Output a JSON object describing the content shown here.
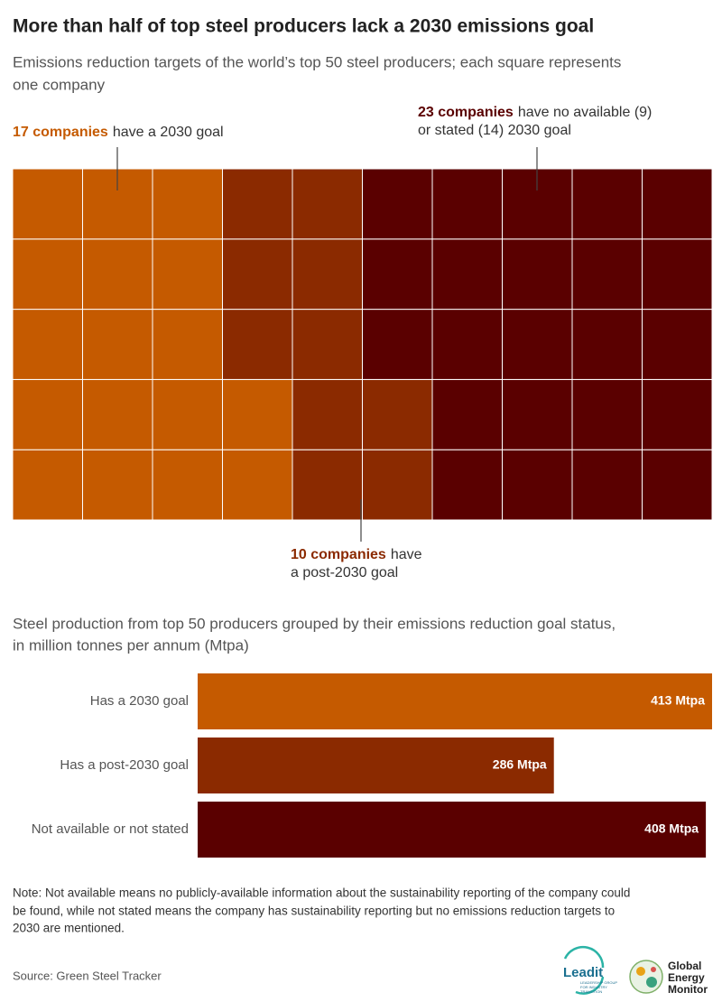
{
  "title": "More than half of top steel producers lack a 2030 emissions goal",
  "subtitle": [
    "Emissions reduction targets of the world’s top 50 steel producers; each square represents",
    "one company"
  ],
  "chart_data": [
    {
      "type": "waffle",
      "values": [
        17,
        10,
        23
      ],
      "colors": [
        "#c55a00",
        "#8b2a00",
        "#5a0000"
      ],
      "annotations": [
        {
          "highlight": "17 companies",
          "text": [
            "have a 2030 goal"
          ]
        },
        {
          "highlight": "10 companies",
          "text": [
            "have",
            "a post-2030 goal"
          ]
        },
        {
          "highlight": "23 companies",
          "text": [
            "have no available (9)",
            "or stated (14) 2030 goal"
          ]
        }
      ]
    },
    {
      "type": "bar",
      "title": [
        "Steel production from top 50 producers grouped by their emissions reduction goal status,",
        "in million tonnes per annum (Mtpa)"
      ],
      "categories": [
        "Has a 2030 goal",
        "Has a post-2030 goal",
        "Not available or not stated"
      ],
      "values": [
        413,
        286,
        408
      ],
      "value_labels": [
        "413 Mtpa",
        "286 Mtpa",
        "408 Mtpa"
      ],
      "colors": [
        "#c55a00",
        "#8b2a00",
        "#5a0000"
      ]
    }
  ],
  "note": [
    "Note: Not available means no publicly-available information about the sustainability reporting of the company could",
    "be found, while not stated means the company has sustainability reporting but no emissions reduction targets to",
    "2030 are mentioned."
  ],
  "source": "Source: Green Steel Tracker",
  "logos": {
    "leadit": "Leadit",
    "leadit_tagline": [
      "LEADERSHIP GROUP",
      "FOR INDUSTRY",
      "TRANSITION"
    ],
    "gem": [
      "Global",
      "Energy",
      "Monitor"
    ]
  }
}
